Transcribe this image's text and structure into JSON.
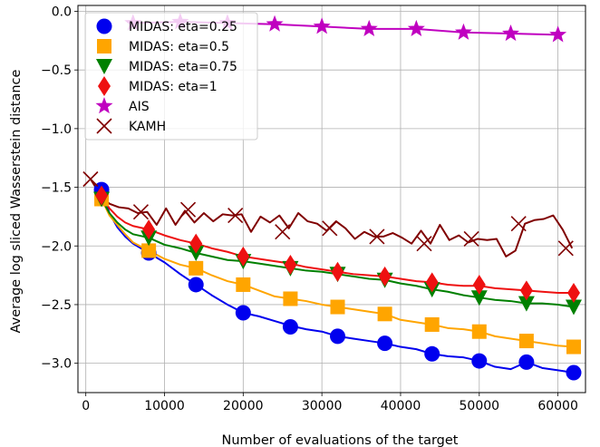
{
  "chart_data": {
    "type": "line",
    "xlabel": "Number of evaluations of the target",
    "ylabel": "Average log sliced Wasserstein distance",
    "xlim": [
      -1000,
      63500
    ],
    "ylim": [
      -3.25,
      0.05
    ],
    "x_ticks": [
      0,
      10000,
      20000,
      30000,
      40000,
      50000,
      60000
    ],
    "x_tick_labels": [
      "0",
      "10000",
      "20000",
      "30000",
      "40000",
      "50000",
      "60000"
    ],
    "y_ticks": [
      0.0,
      -0.5,
      -1.0,
      -1.5,
      -2.0,
      -2.5,
      -3.0
    ],
    "y_tick_labels": [
      "0.0",
      "−0.5",
      "−1.0",
      "−1.5",
      "−2.0",
      "−2.5",
      "−3.0"
    ],
    "grid": true,
    "legend_position": "top-left",
    "series": [
      {
        "name": "MIDAS: eta=0.25",
        "color": "#0000ee",
        "marker": "circle",
        "x": [
          2000,
          3000,
          4000,
          5000,
          6000,
          8000,
          10000,
          12000,
          14000,
          16000,
          18000,
          20000,
          22000,
          24000,
          26000,
          28000,
          30000,
          32000,
          34000,
          36000,
          38000,
          40000,
          42000,
          44000,
          46000,
          48000,
          50000,
          52000,
          54000,
          56000,
          58000,
          60000,
          62000
        ],
        "y": [
          -1.52,
          -1.72,
          -1.84,
          -1.92,
          -1.98,
          -2.06,
          -2.14,
          -2.24,
          -2.33,
          -2.42,
          -2.5,
          -2.57,
          -2.6,
          -2.64,
          -2.68,
          -2.71,
          -2.73,
          -2.77,
          -2.79,
          -2.81,
          -2.83,
          -2.86,
          -2.88,
          -2.92,
          -2.94,
          -2.95,
          -2.98,
          -3.03,
          -3.05,
          -2.99,
          -3.04,
          -3.06,
          -3.08
        ],
        "marker_x": [
          2000,
          8000,
          14000,
          20000,
          26000,
          32000,
          38000,
          44000,
          50000,
          56000,
          62000
        ],
        "marker_y": [
          -1.52,
          -2.06,
          -2.33,
          -2.57,
          -2.69,
          -2.77,
          -2.83,
          -2.92,
          -2.98,
          -2.99,
          -3.08
        ]
      },
      {
        "name": "MIDAS: eta=0.5",
        "color": "#ffa500",
        "marker": "square",
        "x": [
          2000,
          3000,
          4000,
          5000,
          6000,
          8000,
          10000,
          12000,
          14000,
          16000,
          18000,
          20000,
          22000,
          24000,
          26000,
          28000,
          30000,
          32000,
          34000,
          36000,
          38000,
          40000,
          42000,
          44000,
          46000,
          48000,
          50000,
          52000,
          54000,
          56000,
          58000,
          60000,
          62000
        ],
        "y": [
          -1.6,
          -1.74,
          -1.82,
          -1.9,
          -1.97,
          -2.04,
          -2.11,
          -2.16,
          -2.19,
          -2.25,
          -2.3,
          -2.33,
          -2.38,
          -2.43,
          -2.45,
          -2.47,
          -2.5,
          -2.52,
          -2.54,
          -2.56,
          -2.58,
          -2.63,
          -2.65,
          -2.67,
          -2.7,
          -2.71,
          -2.73,
          -2.77,
          -2.79,
          -2.81,
          -2.83,
          -2.85,
          -2.86
        ],
        "marker_x": [
          2000,
          8000,
          14000,
          20000,
          26000,
          32000,
          38000,
          44000,
          50000,
          56000,
          62000
        ],
        "marker_y": [
          -1.6,
          -2.04,
          -2.19,
          -2.33,
          -2.45,
          -2.52,
          -2.58,
          -2.67,
          -2.73,
          -2.81,
          -2.86
        ]
      },
      {
        "name": "MIDAS: eta=0.75",
        "color": "#008000",
        "marker": "triangle-down",
        "x": [
          2000,
          3000,
          4000,
          5000,
          6000,
          8000,
          10000,
          12000,
          14000,
          16000,
          18000,
          20000,
          22000,
          24000,
          26000,
          28000,
          30000,
          32000,
          34000,
          36000,
          38000,
          40000,
          42000,
          44000,
          46000,
          48000,
          50000,
          52000,
          54000,
          56000,
          58000,
          60000,
          62000
        ],
        "y": [
          -1.6,
          -1.72,
          -1.8,
          -1.86,
          -1.9,
          -1.93,
          -1.99,
          -2.02,
          -2.06,
          -2.09,
          -2.12,
          -2.13,
          -2.15,
          -2.17,
          -2.19,
          -2.21,
          -2.22,
          -2.24,
          -2.26,
          -2.28,
          -2.29,
          -2.32,
          -2.34,
          -2.37,
          -2.39,
          -2.42,
          -2.44,
          -2.46,
          -2.47,
          -2.49,
          -2.49,
          -2.5,
          -2.52
        ],
        "marker_x": [
          2000,
          8000,
          14000,
          20000,
          26000,
          32000,
          38000,
          44000,
          50000,
          56000,
          62000
        ],
        "marker_y": [
          -1.6,
          -1.93,
          -2.06,
          -2.13,
          -2.19,
          -2.24,
          -2.29,
          -2.37,
          -2.44,
          -2.49,
          -2.52
        ]
      },
      {
        "name": "MIDAS: eta=1",
        "color": "#ee1111",
        "marker": "thin-diamond",
        "x": [
          2000,
          3000,
          4000,
          5000,
          6000,
          8000,
          10000,
          12000,
          14000,
          16000,
          18000,
          20000,
          22000,
          24000,
          26000,
          28000,
          30000,
          32000,
          34000,
          36000,
          38000,
          40000,
          42000,
          44000,
          46000,
          48000,
          50000,
          52000,
          54000,
          56000,
          58000,
          60000,
          62000
        ],
        "y": [
          -1.57,
          -1.68,
          -1.75,
          -1.8,
          -1.83,
          -1.86,
          -1.91,
          -1.95,
          -1.98,
          -2.02,
          -2.05,
          -2.09,
          -2.11,
          -2.13,
          -2.15,
          -2.18,
          -2.2,
          -2.22,
          -2.24,
          -2.25,
          -2.26,
          -2.28,
          -2.3,
          -2.31,
          -2.33,
          -2.34,
          -2.34,
          -2.36,
          -2.37,
          -2.38,
          -2.39,
          -2.4,
          -2.4
        ],
        "marker_x": [
          2000,
          8000,
          14000,
          20000,
          26000,
          32000,
          38000,
          44000,
          50000,
          56000,
          62000
        ],
        "marker_y": [
          -1.57,
          -1.86,
          -1.98,
          -2.09,
          -2.16,
          -2.22,
          -2.26,
          -2.31,
          -2.33,
          -2.38,
          -2.4
        ]
      },
      {
        "name": "AIS",
        "color": "#c000c0",
        "marker": "star",
        "x": [
          6000,
          12000,
          18000,
          24000,
          30000,
          36000,
          42000,
          48000,
          54000,
          60000
        ],
        "y": [
          -0.1,
          -0.09,
          -0.1,
          -0.11,
          -0.13,
          -0.15,
          -0.15,
          -0.18,
          -0.19,
          -0.2
        ],
        "marker_x": [
          6000,
          12000,
          18000,
          24000,
          30000,
          36000,
          42000,
          48000,
          54000,
          60000
        ],
        "marker_y": [
          -0.1,
          -0.09,
          -0.1,
          -0.11,
          -0.13,
          -0.15,
          -0.15,
          -0.18,
          -0.19,
          -0.2
        ]
      },
      {
        "name": "KAMH",
        "color": "#800000",
        "marker": "x",
        "x": [
          600,
          1800,
          3000,
          4200,
          5400,
          6600,
          7800,
          9000,
          10200,
          11400,
          12600,
          13800,
          15000,
          16200,
          17400,
          18600,
          19800,
          21000,
          22200,
          23400,
          24600,
          25800,
          27000,
          28200,
          29400,
          30600,
          31800,
          33000,
          34200,
          35400,
          36600,
          37800,
          39000,
          40200,
          41400,
          42600,
          43800,
          45000,
          46200,
          47400,
          48600,
          49800,
          51000,
          52200,
          53400,
          54600,
          55800,
          57000,
          58200,
          59400,
          60600,
          61800
        ],
        "y": [
          -1.43,
          -1.56,
          -1.64,
          -1.67,
          -1.68,
          -1.72,
          -1.71,
          -1.82,
          -1.68,
          -1.82,
          -1.7,
          -1.8,
          -1.72,
          -1.79,
          -1.73,
          -1.74,
          -1.73,
          -1.88,
          -1.75,
          -1.8,
          -1.74,
          -1.85,
          -1.72,
          -1.79,
          -1.81,
          -1.87,
          -1.79,
          -1.85,
          -1.94,
          -1.88,
          -1.92,
          -1.92,
          -1.89,
          -1.93,
          -1.98,
          -1.87,
          -1.98,
          -1.82,
          -1.95,
          -1.91,
          -1.97,
          -1.94,
          -1.95,
          -1.94,
          -2.09,
          -2.04,
          -1.81,
          -1.78,
          -1.77,
          -1.74,
          -1.86,
          -2.02
        ],
        "marker_x": [
          600,
          7000,
          13000,
          19000,
          25000,
          31000,
          37000,
          43000,
          49000,
          55000,
          61000
        ],
        "marker_y": [
          -1.43,
          -1.71,
          -1.69,
          -1.74,
          -1.88,
          -1.85,
          -1.92,
          -1.98,
          -1.94,
          -1.81,
          -2.02
        ]
      }
    ]
  }
}
